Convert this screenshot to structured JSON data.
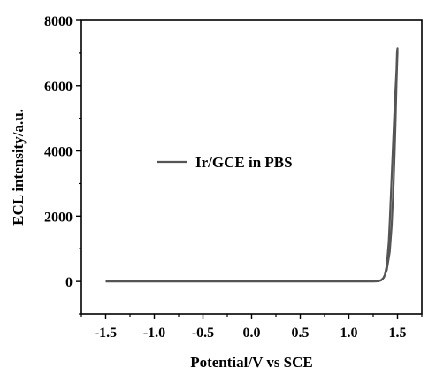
{
  "chart_data": {
    "type": "line",
    "title": "",
    "xlabel": "Potential/V vs SCE",
    "ylabel": "ECL intensity/a.u.",
    "xlim": [
      -1.75,
      1.75
    ],
    "ylim": [
      -1000,
      8000
    ],
    "xticks": [
      -1.5,
      -1.0,
      -0.5,
      0.0,
      0.5,
      1.0,
      1.5
    ],
    "xtick_labels": [
      "-1.5",
      "-1.0",
      "-0.5",
      "0.0",
      "0.5",
      "1.0",
      "1.5"
    ],
    "yticks": [
      0,
      2000,
      4000,
      6000,
      8000
    ],
    "ytick_labels": [
      "0",
      "2000",
      "4000",
      "6000",
      "8000"
    ],
    "grid": false,
    "legend_position": "center-left",
    "series": [
      {
        "name": "Ir/GCE in PBS",
        "color": "#555555",
        "x": [
          -1.5,
          -1.0,
          -0.5,
          0.0,
          0.5,
          1.0,
          1.2,
          1.25,
          1.3,
          1.33,
          1.36,
          1.39,
          1.42,
          1.44,
          1.46,
          1.47,
          1.48,
          1.49,
          1.5,
          1.5,
          1.495,
          1.49,
          1.48,
          1.47,
          1.46,
          1.45,
          1.44,
          1.43,
          1.42,
          1.41,
          1.39,
          1.37,
          1.35,
          1.33,
          1.31,
          1.28,
          1.25,
          1.2,
          1.0,
          0.5,
          0.0,
          -0.5,
          -1.0,
          -1.5
        ],
        "y": [
          0,
          0,
          0,
          0,
          0,
          0,
          0,
          5,
          15,
          40,
          120,
          350,
          900,
          1700,
          3000,
          3900,
          4900,
          6100,
          7000,
          7150,
          7000,
          6500,
          5900,
          5300,
          4600,
          3900,
          3200,
          2500,
          1800,
          1200,
          500,
          200,
          80,
          30,
          10,
          3,
          0,
          0,
          0,
          0,
          0,
          0,
          0,
          0
        ]
      }
    ]
  }
}
